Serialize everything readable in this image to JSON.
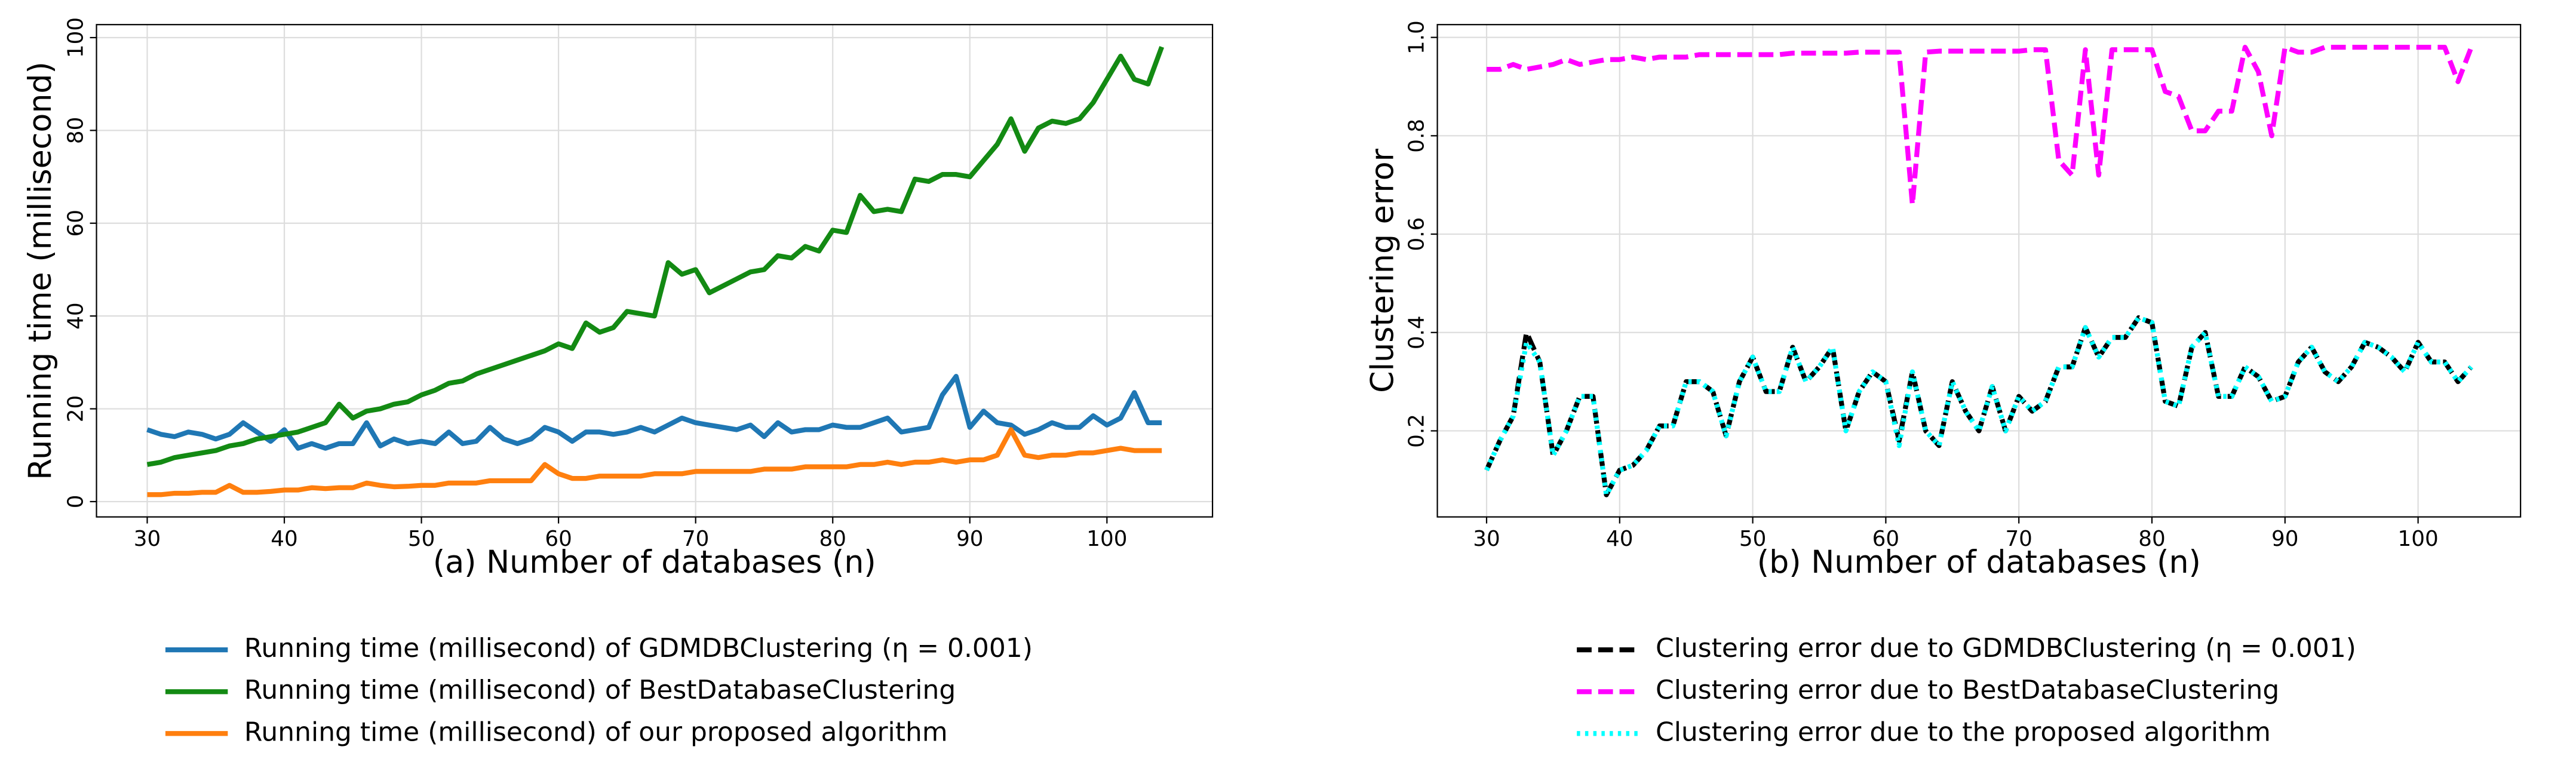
{
  "chart_data": [
    {
      "type": "line",
      "ylabel": "Running time (millisecond)",
      "xlabel": "(a) Number of databases (n)",
      "xlim": [
        26.3,
        107.7
      ],
      "ylim": [
        -3.3,
        102.8
      ],
      "xticks": [
        30,
        40,
        50,
        60,
        70,
        80,
        90,
        100
      ],
      "yticks": [
        0,
        20,
        40,
        60,
        80,
        100
      ],
      "grid": true,
      "legend": "below",
      "x": [
        30,
        31,
        32,
        33,
        34,
        35,
        36,
        37,
        38,
        39,
        40,
        41,
        42,
        43,
        44,
        45,
        46,
        47,
        48,
        49,
        50,
        51,
        52,
        53,
        54,
        55,
        56,
        57,
        58,
        59,
        60,
        61,
        62,
        63,
        64,
        65,
        66,
        67,
        68,
        69,
        70,
        71,
        72,
        73,
        74,
        75,
        76,
        77,
        78,
        79,
        80,
        81,
        82,
        83,
        84,
        85,
        86,
        87,
        88,
        89,
        90,
        91,
        92,
        93,
        94,
        95,
        96,
        97,
        98,
        99,
        100,
        101,
        102,
        103,
        104
      ],
      "series": [
        {
          "name": "Running time (millisecond) of GDMDBClustering (η = 0.001)",
          "color": "#1f77b4",
          "style": "solid",
          "values": [
            15.5,
            14.5,
            14,
            15,
            14.5,
            13.5,
            14.5,
            17,
            15,
            13,
            15.5,
            11.5,
            12.5,
            11.5,
            12.5,
            12.5,
            17,
            12,
            13.5,
            12.5,
            13,
            12.5,
            15,
            12.5,
            13,
            16,
            13.5,
            12.5,
            13.5,
            16,
            15,
            13,
            15,
            15,
            14.5,
            15,
            16,
            15,
            16.5,
            18,
            17,
            16.5,
            16,
            15.5,
            16.5,
            14,
            17,
            15,
            15.5,
            15.5,
            16.5,
            16,
            16,
            17,
            18,
            15,
            15.5,
            16,
            23,
            27,
            16,
            19.5,
            17,
            16.5,
            14.5,
            15.5,
            17,
            16,
            16,
            18.5,
            16.5,
            18,
            23.5,
            17,
            17
          ]
        },
        {
          "name": "Running time (millisecond) of BestDatabaseClustering",
          "color": "#138a13",
          "style": "solid",
          "values": [
            8,
            8.5,
            9.5,
            10,
            10.5,
            11,
            12,
            12.5,
            13.5,
            14,
            14.5,
            15,
            16,
            17,
            21,
            18,
            19.5,
            20,
            21,
            21.5,
            23,
            24,
            25.5,
            26,
            27.5,
            28.5,
            29.5,
            30.5,
            31.5,
            32.5,
            34,
            33,
            38.5,
            36.5,
            37.5,
            41,
            40.5,
            40,
            51.5,
            49,
            50,
            45,
            46.5,
            48,
            49.5,
            50,
            53,
            52.5,
            55,
            54,
            58.5,
            58,
            66,
            62.5,
            63,
            62.5,
            69.5,
            69,
            70.5,
            70.5,
            70,
            73.5,
            77,
            82.5,
            75.5,
            80.5,
            82,
            81.5,
            82.5,
            86,
            91,
            96,
            91,
            90,
            98
          ]
        },
        {
          "name": "Running time (millisecond) of our proposed algorithm",
          "color": "#ff7f0e",
          "style": "solid",
          "values": [
            1.5,
            1.5,
            1.8,
            1.8,
            2,
            2,
            3.5,
            2,
            2,
            2.2,
            2.5,
            2.5,
            3,
            2.8,
            3,
            3,
            4,
            3.5,
            3.2,
            3.3,
            3.5,
            3.5,
            4,
            4,
            4,
            4.5,
            4.5,
            4.5,
            4.5,
            8,
            6,
            5,
            5,
            5.5,
            5.5,
            5.5,
            5.5,
            6,
            6,
            6,
            6.5,
            6.5,
            6.5,
            6.5,
            6.5,
            7,
            7,
            7,
            7.5,
            7.5,
            7.5,
            7.5,
            8,
            8,
            8.5,
            8,
            8.5,
            8.5,
            9,
            8.5,
            9,
            9,
            10,
            15.5,
            10,
            9.5,
            10,
            10,
            10.5,
            10.5,
            11,
            11.5,
            11,
            11,
            11
          ]
        }
      ]
    },
    {
      "type": "line",
      "ylabel": "Clustering error",
      "xlabel": "(b) Number of databases (n)",
      "xlim": [
        26.3,
        107.7
      ],
      "ylim": [
        0.025,
        1.026
      ],
      "xticks": [
        30,
        40,
        50,
        60,
        70,
        80,
        90,
        100
      ],
      "yticks": [
        0.2,
        0.4,
        0.6,
        0.8,
        {
          "value": 1,
          "label": "1.0"
        }
      ],
      "grid": true,
      "legend": "below",
      "x": [
        30,
        31,
        32,
        33,
        34,
        35,
        36,
        37,
        38,
        39,
        40,
        41,
        42,
        43,
        44,
        45,
        46,
        47,
        48,
        49,
        50,
        51,
        52,
        53,
        54,
        55,
        56,
        57,
        58,
        59,
        60,
        61,
        62,
        63,
        64,
        65,
        66,
        67,
        68,
        69,
        70,
        71,
        72,
        73,
        74,
        75,
        76,
        77,
        78,
        79,
        80,
        81,
        82,
        83,
        84,
        85,
        86,
        87,
        88,
        89,
        90,
        91,
        92,
        93,
        94,
        95,
        96,
        97,
        98,
        99,
        100,
        101,
        102,
        103,
        104
      ],
      "series": [
        {
          "name": "Clustering error due to GDMDBClustering (η = 0.001)",
          "color": "#000000",
          "style": "dashed",
          "values": [
            0.12,
            0.18,
            0.23,
            0.4,
            0.34,
            0.15,
            0.2,
            0.27,
            0.27,
            0.07,
            0.12,
            0.13,
            0.16,
            0.21,
            0.21,
            0.3,
            0.3,
            0.28,
            0.19,
            0.3,
            0.35,
            0.28,
            0.28,
            0.37,
            0.3,
            0.33,
            0.37,
            0.2,
            0.28,
            0.32,
            0.3,
            0.18,
            0.32,
            0.2,
            0.17,
            0.3,
            0.24,
            0.2,
            0.29,
            0.2,
            0.27,
            0.24,
            0.26,
            0.33,
            0.33,
            0.41,
            0.35,
            0.39,
            0.39,
            0.43,
            0.42,
            0.26,
            0.25,
            0.37,
            0.4,
            0.27,
            0.27,
            0.33,
            0.31,
            0.26,
            0.27,
            0.34,
            0.37,
            0.32,
            0.3,
            0.33,
            0.38,
            0.37,
            0.35,
            0.32,
            0.38,
            0.34,
            0.34,
            0.3,
            0.33
          ]
        },
        {
          "name": "Clustering error due to BestDatabaseClustering",
          "color": "#ff00ff",
          "style": "dashed",
          "values": [
            0.935,
            0.935,
            0.945,
            0.935,
            0.94,
            0.945,
            0.955,
            0.945,
            0.95,
            0.955,
            0.955,
            0.96,
            0.955,
            0.96,
            0.96,
            0.96,
            0.965,
            0.965,
            0.965,
            0.965,
            0.965,
            0.965,
            0.965,
            0.968,
            0.968,
            0.968,
            0.968,
            0.968,
            0.97,
            0.97,
            0.97,
            0.97,
            0.66,
            0.97,
            0.972,
            0.972,
            0.972,
            0.972,
            0.972,
            0.972,
            0.972,
            0.975,
            0.975,
            0.75,
            0.72,
            0.975,
            0.72,
            0.975,
            0.975,
            0.975,
            0.975,
            0.89,
            0.88,
            0.81,
            0.81,
            0.85,
            0.85,
            0.98,
            0.93,
            0.8,
            0.98,
            0.97,
            0.97,
            0.98,
            0.98,
            0.98,
            0.98,
            0.98,
            0.98,
            0.98,
            0.98,
            0.98,
            0.98,
            0.91,
            0.98
          ]
        },
        {
          "name": "Clustering error due to the proposed algorithm",
          "color": "#00ffff",
          "style": "dotted",
          "values": [
            0.12,
            0.18,
            0.23,
            0.38,
            0.34,
            0.15,
            0.2,
            0.27,
            0.27,
            0.07,
            0.12,
            0.13,
            0.16,
            0.21,
            0.21,
            0.3,
            0.3,
            0.28,
            0.19,
            0.3,
            0.35,
            0.28,
            0.28,
            0.37,
            0.3,
            0.33,
            0.37,
            0.2,
            0.28,
            0.32,
            0.3,
            0.17,
            0.32,
            0.2,
            0.17,
            0.3,
            0.24,
            0.2,
            0.29,
            0.2,
            0.27,
            0.24,
            0.26,
            0.33,
            0.33,
            0.41,
            0.35,
            0.39,
            0.39,
            0.43,
            0.42,
            0.26,
            0.25,
            0.37,
            0.4,
            0.27,
            0.27,
            0.33,
            0.31,
            0.26,
            0.27,
            0.34,
            0.37,
            0.32,
            0.3,
            0.33,
            0.38,
            0.37,
            0.35,
            0.32,
            0.38,
            0.34,
            0.34,
            0.3,
            0.33
          ]
        }
      ]
    }
  ]
}
